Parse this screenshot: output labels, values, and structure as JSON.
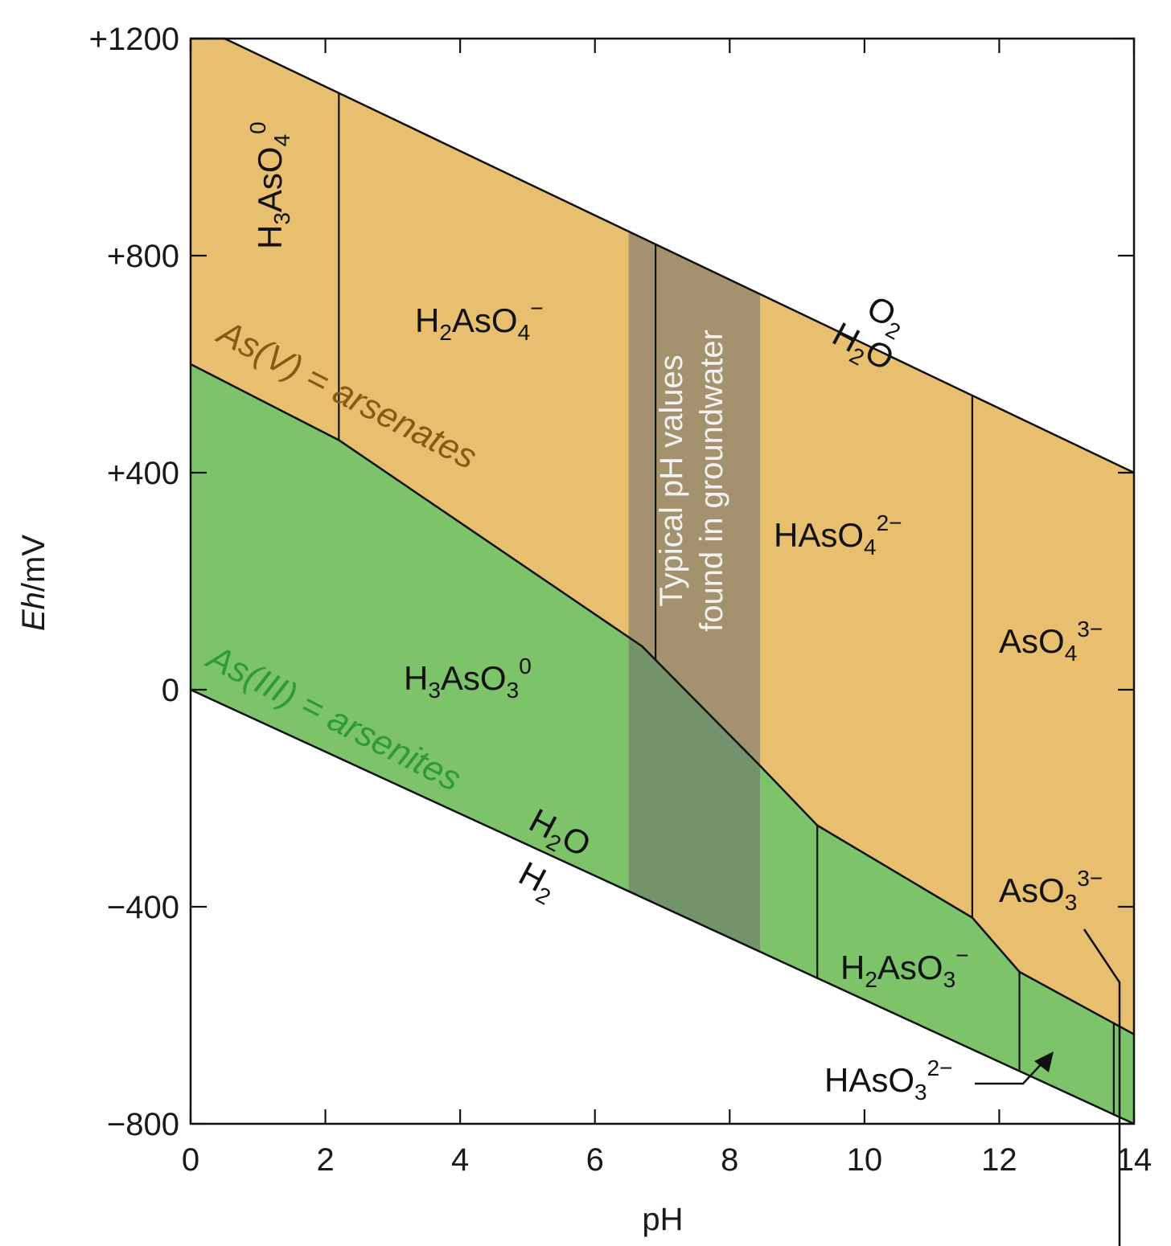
{
  "chart_data": {
    "type": "area",
    "title": "",
    "xlabel": "pH",
    "ylabel_italic": "Eh",
    "ylabel_rest": "/mV",
    "xlim": [
      0,
      14
    ],
    "ylim": [
      -800,
      1200
    ],
    "xticks": [
      "0",
      "2",
      "4",
      "6",
      "8",
      "10",
      "12",
      "14"
    ],
    "yticks": [
      "+1200",
      "+800",
      "+400",
      "0",
      "−400",
      "−800"
    ],
    "grid": false,
    "colors": {
      "arsenates": "#e8be6f",
      "arsenites": "#7dc36a",
      "groundwater_band": "#6b6b6b",
      "as5_label": "#8a5a14",
      "as3_label": "#2e9a3a",
      "band_text": "#f2f2f2",
      "line": "#111111"
    },
    "water_stability": {
      "upper_O2_H2O": {
        "x": [
          0,
          14
        ],
        "y": [
          1230,
          400
        ]
      },
      "lower_H2O_H2": {
        "x": [
          0,
          14
        ],
        "y": [
          0,
          -800
        ]
      }
    },
    "as5_as3_boundary": {
      "x": [
        0,
        2.2,
        6.7,
        8.45,
        9.3,
        11.6,
        12.3,
        14
      ],
      "y": [
        600,
        460,
        80,
        -140,
        -250,
        -420,
        -520,
        -635
      ]
    },
    "as5_species_boundaries_pH": [
      2.2,
      6.9,
      11.6
    ],
    "as3_species_boundaries_pH": [
      9.3,
      12.3,
      13.7
    ],
    "groundwater_band_pH": [
      6.5,
      8.45
    ],
    "band_text": [
      "Typical pH values",
      "found in groundwater"
    ],
    "group_labels": {
      "as5": "As(V) = arsenates",
      "as3": "As(III) = arsenites"
    },
    "water_labels": {
      "top_o2": {
        "main": "O",
        "sub": "2"
      },
      "top_h2o": {
        "a": "H",
        "sub": "2",
        "b": "O"
      },
      "bottom_h2o": {
        "a": "H",
        "sub": "2",
        "b": "O"
      },
      "bottom_h2": {
        "main": "H",
        "sub": "2"
      }
    },
    "species_labels": {
      "h3aso4": {
        "a": "H",
        "s1": "3",
        "b": "AsO",
        "s2": "4",
        "sup": "0"
      },
      "h2aso4": {
        "a": "H",
        "s1": "2",
        "b": "AsO",
        "s2": "4",
        "sup": "−"
      },
      "haso4": {
        "a": "HAsO",
        "s2": "4",
        "sup": "2−"
      },
      "aso4": {
        "a": "AsO",
        "s2": "4",
        "sup": "3−"
      },
      "h3aso3": {
        "a": "H",
        "s1": "3",
        "b": "AsO",
        "s2": "3",
        "sup": "0"
      },
      "h2aso3": {
        "a": "H",
        "s1": "2",
        "b": "AsO",
        "s2": "3",
        "sup": "−"
      },
      "aso3": {
        "a": "AsO",
        "s2": "3",
        "sup": "3−"
      },
      "haso3": {
        "a": "HAsO",
        "s2": "3",
        "sup": "2−"
      }
    }
  }
}
